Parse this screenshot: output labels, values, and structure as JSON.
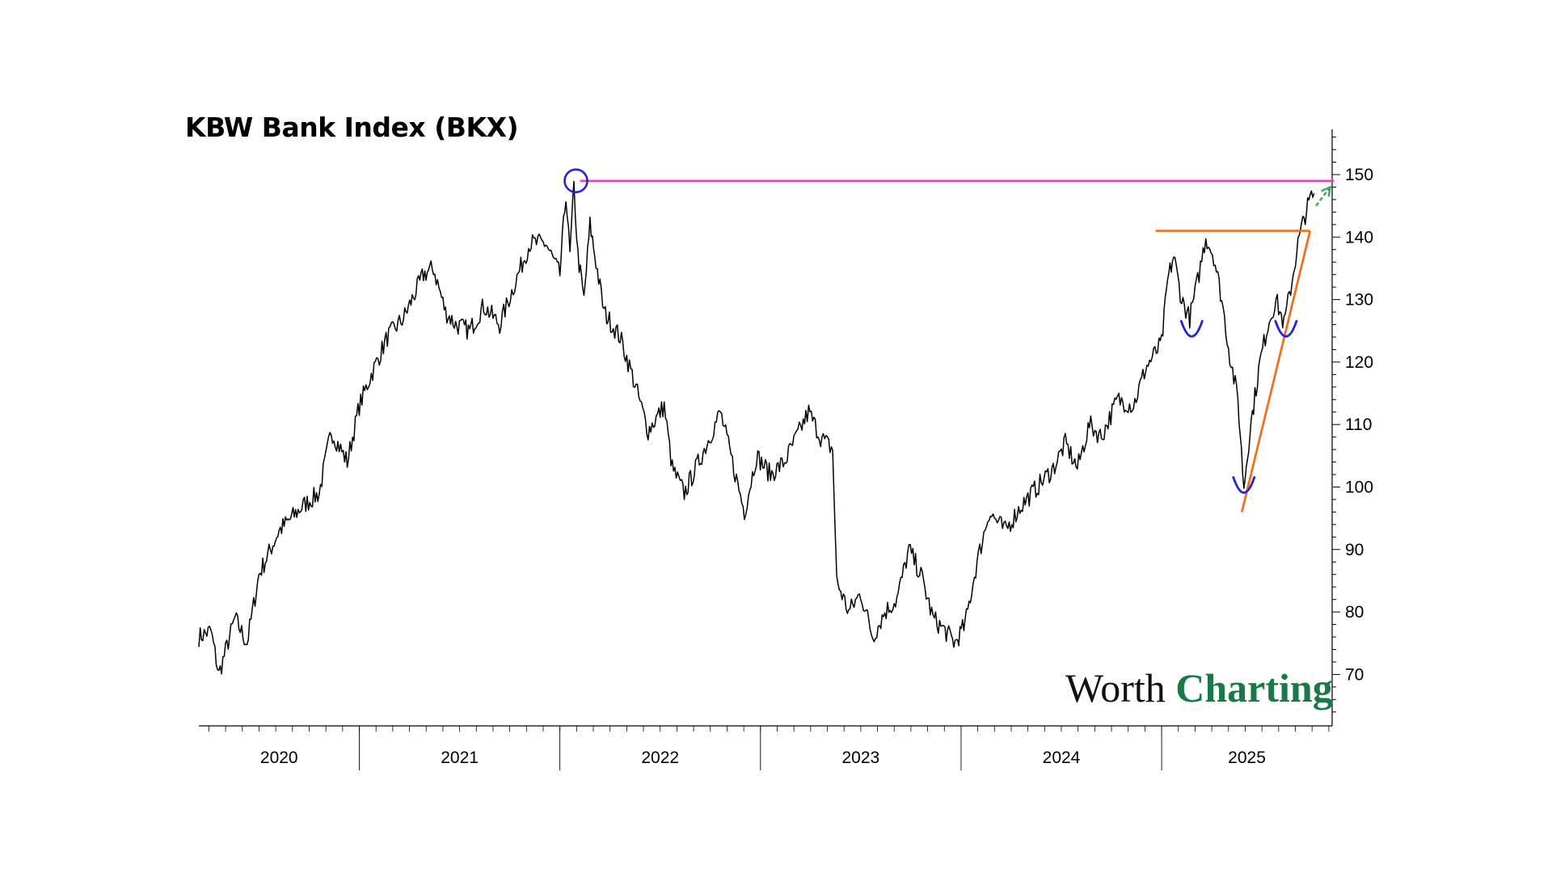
{
  "chart_data": {
    "type": "line",
    "title": "KBW Bank Index (BKX)",
    "xlabel": "",
    "ylabel": "",
    "ylim": [
      62,
      158
    ],
    "yticks": [
      70,
      80,
      90,
      100,
      110,
      120,
      130,
      140,
      150
    ],
    "year_labels": [
      "2020",
      "2021",
      "2022",
      "2023",
      "2024",
      "2025"
    ],
    "xlim": [
      2020.2,
      2025.85
    ],
    "grid": false,
    "series": [
      {
        "color": "#000000",
        "points": [
          [
            2020.2,
            76
          ],
          [
            2020.26,
            77
          ],
          [
            2020.3,
            70
          ],
          [
            2020.38,
            79
          ],
          [
            2020.44,
            75
          ],
          [
            2020.5,
            86
          ],
          [
            2020.6,
            93
          ],
          [
            2020.72,
            97
          ],
          [
            2020.8,
            99
          ],
          [
            2020.86,
            109
          ],
          [
            2020.94,
            104
          ],
          [
            2021.0,
            113
          ],
          [
            2021.06,
            118
          ],
          [
            2021.14,
            124
          ],
          [
            2021.22,
            127
          ],
          [
            2021.32,
            134
          ],
          [
            2021.37,
            135
          ],
          [
            2021.43,
            128
          ],
          [
            2021.48,
            126
          ],
          [
            2021.55,
            125
          ],
          [
            2021.62,
            129
          ],
          [
            2021.7,
            126
          ],
          [
            2021.78,
            133
          ],
          [
            2021.85,
            139
          ],
          [
            2021.93,
            139
          ],
          [
            2022.0,
            134
          ],
          [
            2022.03,
            147
          ],
          [
            2022.05,
            137
          ],
          [
            2022.07,
            148
          ],
          [
            2022.09,
            137
          ],
          [
            2022.12,
            130
          ],
          [
            2022.15,
            142
          ],
          [
            2022.18,
            136
          ],
          [
            2022.22,
            128
          ],
          [
            2022.3,
            124
          ],
          [
            2022.36,
            118
          ],
          [
            2022.44,
            109
          ],
          [
            2022.52,
            113
          ],
          [
            2022.56,
            103
          ],
          [
            2022.62,
            99
          ],
          [
            2022.72,
            106
          ],
          [
            2022.8,
            112
          ],
          [
            2022.86,
            104
          ],
          [
            2022.92,
            96
          ],
          [
            2022.98,
            105
          ],
          [
            2023.05,
            102
          ],
          [
            2023.12,
            104
          ],
          [
            2023.18,
            108
          ],
          [
            2023.24,
            112
          ],
          [
            2023.3,
            108
          ],
          [
            2023.36,
            106
          ],
          [
            2023.38,
            85
          ],
          [
            2023.44,
            80
          ],
          [
            2023.5,
            83
          ],
          [
            2023.56,
            76
          ],
          [
            2023.62,
            80
          ],
          [
            2023.68,
            82
          ],
          [
            2023.74,
            90
          ],
          [
            2023.8,
            86
          ],
          [
            2023.86,
            79
          ],
          [
            2023.92,
            77
          ],
          [
            2023.97,
            75
          ],
          [
            2024.02,
            78
          ],
          [
            2024.08,
            88
          ],
          [
            2024.14,
            96
          ],
          [
            2024.22,
            93
          ],
          [
            2024.3,
            97
          ],
          [
            2024.38,
            100
          ],
          [
            2024.46,
            103
          ],
          [
            2024.52,
            107
          ],
          [
            2024.58,
            103
          ],
          [
            2024.64,
            110
          ],
          [
            2024.7,
            108
          ],
          [
            2024.78,
            114
          ],
          [
            2024.86,
            113
          ],
          [
            2024.92,
            119
          ],
          [
            2025.0,
            123
          ],
          [
            2025.03,
            133
          ],
          [
            2025.06,
            137
          ],
          [
            2025.1,
            130
          ],
          [
            2025.14,
            127
          ],
          [
            2025.18,
            133
          ],
          [
            2025.22,
            140
          ],
          [
            2025.26,
            137
          ],
          [
            2025.3,
            130
          ],
          [
            2025.34,
            121
          ],
          [
            2025.38,
            114
          ],
          [
            2025.41,
            100
          ],
          [
            2025.44,
            109
          ],
          [
            2025.49,
            120
          ],
          [
            2025.53,
            126
          ],
          [
            2025.57,
            130
          ],
          [
            2025.61,
            126
          ],
          [
            2025.65,
            133
          ],
          [
            2025.68,
            139
          ],
          [
            2025.71,
            143
          ],
          [
            2025.74,
            146
          ],
          [
            2025.76,
            147
          ]
        ]
      }
    ],
    "annotations": {
      "resistance_line": {
        "from_x": 2022.1,
        "to_x": 2025.86,
        "y": 149,
        "color": "#e641c8"
      },
      "peak_circle": {
        "x": 2022.08,
        "y": 149,
        "color": "#2323d9"
      },
      "neckline": {
        "from_x": 2024.97,
        "to_x": 2025.74,
        "y": 141,
        "color": "#f07020"
      },
      "trendline": {
        "from": [
          2025.4,
          96
        ],
        "to": [
          2025.74,
          141
        ],
        "color": "#f07020"
      },
      "troughs": [
        {
          "x": 2025.15,
          "y": 125
        },
        {
          "x": 2025.41,
          "y": 100
        },
        {
          "x": 2025.62,
          "y": 125
        }
      ],
      "trough_color": "#2323d9",
      "arrow": {
        "from": [
          2025.77,
          145
        ],
        "to": [
          2025.84,
          148
        ],
        "color": "#3aa864"
      }
    }
  },
  "brand": {
    "word1": "Worth",
    "word2": "Charting"
  }
}
